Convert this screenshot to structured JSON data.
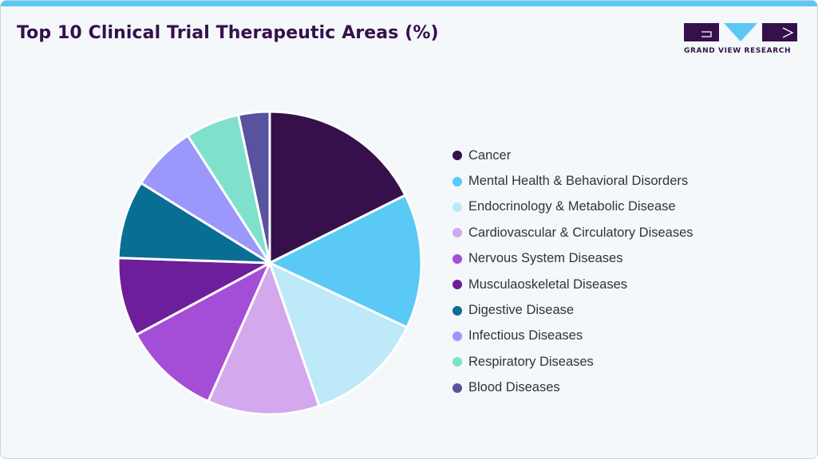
{
  "header": {
    "title": "Top 10 Clinical Trial Therapeutic Areas (%)",
    "logo_text": "GRAND VIEW RESEARCH"
  },
  "colors": {
    "accent_bar": "#5bc7f2",
    "title": "#35104a",
    "logo_dark": "#35104a",
    "logo_light": "#5bc7f2"
  },
  "chart_data": {
    "type": "pie",
    "title": "Top 10 Clinical Trial Therapeutic Areas (%)",
    "legend_position": "right",
    "slices": [
      {
        "label": "Cancer",
        "value": 18.0,
        "color": "#35104a"
      },
      {
        "label": "Mental Health & Behavioral Disorders",
        "value": 14.7,
        "color": "#5bc9f6"
      },
      {
        "label": "Endocrinology & Metabolic Disease",
        "value": 13.0,
        "color": "#bde9f9"
      },
      {
        "label": "Cardiovascular & Circulatory Diseases",
        "value": 12.2,
        "color": "#d4a8ec"
      },
      {
        "label": "Nervous System Diseases",
        "value": 10.7,
        "color": "#a44ed7"
      },
      {
        "label": "Musculaoskeletal Diseases",
        "value": 8.6,
        "color": "#6d1e9a"
      },
      {
        "label": "Digestive Disease",
        "value": 8.5,
        "color": "#086e94"
      },
      {
        "label": "Infectious Diseases",
        "value": 7.2,
        "color": "#9b97fb"
      },
      {
        "label": "Respiratory Diseases",
        "value": 5.9,
        "color": "#7fe1cc"
      },
      {
        "label": "Blood Diseases",
        "value": 3.4,
        "color": "#58529f"
      }
    ]
  }
}
